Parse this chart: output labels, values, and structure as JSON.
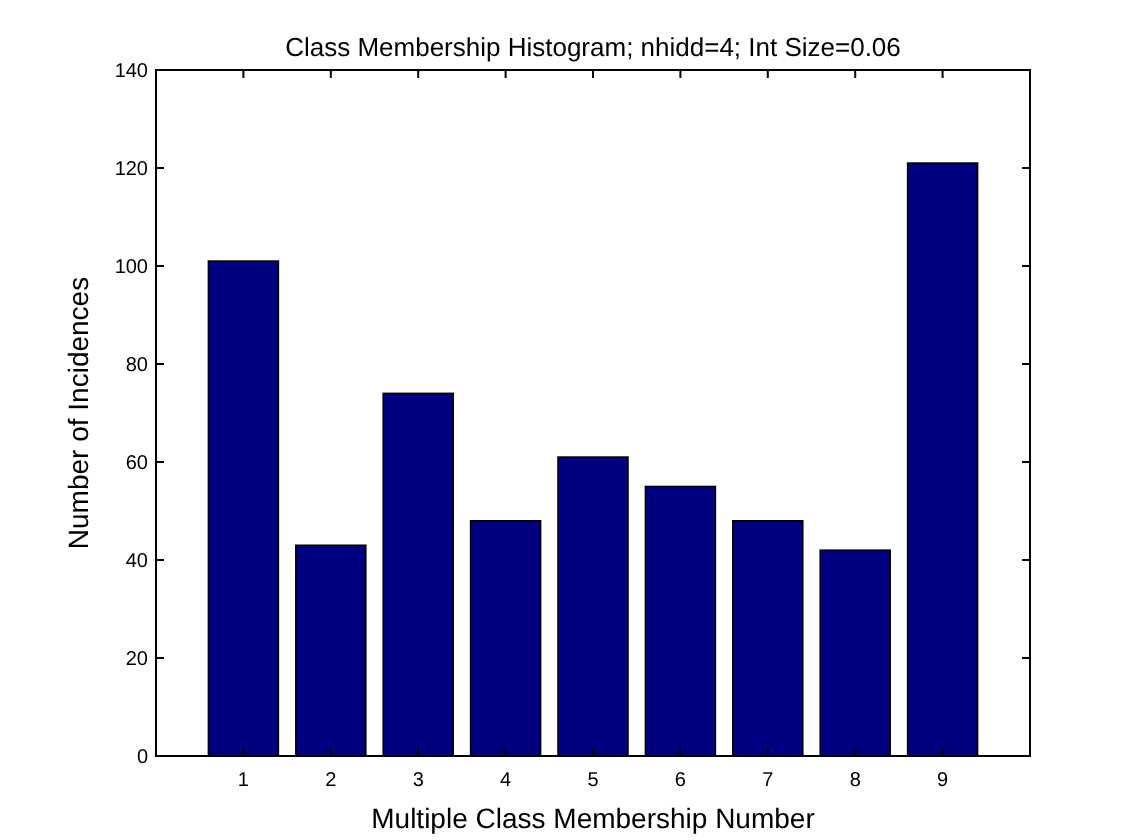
{
  "chart_data": {
    "type": "bar",
    "title": "Class Membership Histogram; nhidd=4; Int Size=0.06",
    "xlabel": "Multiple Class Membership Number",
    "ylabel": "Number of Incidences",
    "x": [
      1,
      2,
      3,
      4,
      5,
      6,
      7,
      8,
      9
    ],
    "values": [
      101,
      43,
      74,
      48,
      61,
      55,
      48,
      42,
      121
    ],
    "color": "#000080",
    "xlim": [
      0,
      10
    ],
    "xticks": [
      1,
      2,
      3,
      4,
      5,
      6,
      7,
      8,
      9
    ],
    "ylim": [
      0,
      140
    ],
    "yticks": [
      0,
      20,
      40,
      60,
      80,
      100,
      120,
      140
    ],
    "grid": false
  }
}
